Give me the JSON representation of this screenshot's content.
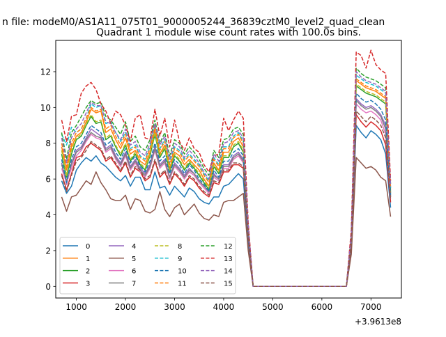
{
  "figure": {
    "suptitle": "n file: modeM0/AS1A11_075T01_9000005244_36839cztM0_level2_quad_clean",
    "title": "Quadrant 1 module wise count rates with 100.0s bins."
  },
  "chart_data": {
    "type": "line",
    "title": "Quadrant 1 module wise count rates with 100.0s bins.",
    "xlabel": "",
    "ylabel": "",
    "x_offset_label": "+3.9613e8",
    "xlim": [
      580,
      7620
    ],
    "ylim": [
      -0.65,
      13.75
    ],
    "xticks": [
      1000,
      2000,
      3000,
      4000,
      5000,
      6000,
      7000
    ],
    "yticks": [
      0,
      2,
      4,
      6,
      8,
      10,
      12
    ],
    "grid": false,
    "legend": {
      "location": "lower-left",
      "columns": 4
    },
    "x": [
      700,
      800,
      900,
      1000,
      1100,
      1200,
      1300,
      1400,
      1500,
      1600,
      1700,
      1800,
      1900,
      2000,
      2100,
      2200,
      2300,
      2400,
      2500,
      2600,
      2700,
      2800,
      2900,
      3000,
      3100,
      3200,
      3300,
      3400,
      3500,
      3600,
      3700,
      3800,
      3900,
      4000,
      4100,
      4200,
      4300,
      4400,
      4500,
      4600,
      4700,
      4800,
      4900,
      5000,
      5100,
      5200,
      5300,
      5400,
      5500,
      5600,
      5700,
      5800,
      5900,
      6000,
      6100,
      6200,
      6300,
      6400,
      6500,
      6600,
      6700,
      6800,
      6900,
      7000,
      7100,
      7200,
      7300,
      7400
    ],
    "series": [
      {
        "name": "0",
        "color": "#1f77b4",
        "dash": false,
        "values": [
          5.9,
          5.2,
          5.6,
          6.5,
          6.9,
          7.2,
          7.0,
          7.3,
          6.9,
          6.7,
          6.4,
          6.1,
          5.9,
          6.2,
          5.6,
          6.1,
          6.1,
          5.4,
          5.4,
          6.4,
          5.5,
          5.6,
          5.1,
          5.6,
          5.3,
          5.0,
          5.5,
          5.3,
          4.9,
          4.7,
          4.6,
          5.0,
          5.0,
          5.6,
          5.7,
          6.0,
          6.3,
          6.0,
          2.5,
          0,
          0,
          0,
          0,
          0,
          0,
          0,
          0,
          0,
          0,
          0,
          0,
          0,
          0,
          0,
          0,
          0,
          0,
          0,
          0,
          2.2,
          9.0,
          8.6,
          8.3,
          8.7,
          8.5,
          8.2,
          7.4,
          4.4
        ]
      },
      {
        "name": "1",
        "color": "#ff7f0e",
        "dash": false,
        "values": [
          7.8,
          6.5,
          7.8,
          8.4,
          8.6,
          9.2,
          9.9,
          9.7,
          9.8,
          8.6,
          8.8,
          8.2,
          7.7,
          8.3,
          7.4,
          7.6,
          7.0,
          6.8,
          7.5,
          8.7,
          7.4,
          7.9,
          6.6,
          7.5,
          7.3,
          6.8,
          7.1,
          6.8,
          6.5,
          6.0,
          5.6,
          6.9,
          6.5,
          7.5,
          7.5,
          8.1,
          8.3,
          7.8,
          3.2,
          0,
          0,
          0,
          0,
          0,
          0,
          0,
          0,
          0,
          0,
          0,
          0,
          0,
          0,
          0,
          0,
          0,
          0,
          0,
          0,
          2.8,
          11.5,
          11.3,
          11.1,
          11.0,
          10.9,
          10.7,
          10.5,
          5.4
        ]
      },
      {
        "name": "2",
        "color": "#2ca02c",
        "dash": false,
        "values": [
          7.4,
          6.1,
          7.4,
          8.2,
          8.4,
          9.0,
          9.5,
          9.1,
          9.2,
          8.2,
          8.4,
          7.8,
          7.3,
          7.9,
          7.0,
          7.4,
          6.8,
          6.5,
          7.3,
          8.5,
          7.2,
          7.7,
          6.4,
          7.3,
          7.0,
          6.5,
          6.9,
          6.6,
          6.2,
          5.8,
          5.4,
          6.7,
          6.3,
          7.2,
          7.2,
          7.8,
          8.0,
          7.5,
          3.1,
          0,
          0,
          0,
          0,
          0,
          0,
          0,
          0,
          0,
          0,
          0,
          0,
          0,
          0,
          0,
          0,
          0,
          0,
          0,
          0,
          2.7,
          11.2,
          11.0,
          10.8,
          10.7,
          10.6,
          10.4,
          10.2,
          5.2
        ]
      },
      {
        "name": "3",
        "color": "#d62728",
        "dash": false,
        "values": [
          6.3,
          5.4,
          6.3,
          7.2,
          7.3,
          7.8,
          8.0,
          7.8,
          7.6,
          7.0,
          7.2,
          6.8,
          6.4,
          6.9,
          6.1,
          6.6,
          6.4,
          5.9,
          6.1,
          7.0,
          6.1,
          6.4,
          5.7,
          6.3,
          6.0,
          5.6,
          6.1,
          5.9,
          5.5,
          5.2,
          5.0,
          5.8,
          5.7,
          6.4,
          6.4,
          6.8,
          6.8,
          6.6,
          2.8,
          0,
          0,
          0,
          0,
          0,
          0,
          0,
          0,
          0,
          0,
          0,
          0,
          0,
          0,
          0,
          0,
          0,
          0,
          0,
          0,
          2.4,
          9.6,
          9.2,
          8.9,
          9.2,
          9.0,
          8.7,
          7.9,
          4.7
        ]
      },
      {
        "name": "4",
        "color": "#9467bd",
        "dash": false,
        "values": [
          6.9,
          5.7,
          6.9,
          7.6,
          7.8,
          8.3,
          8.8,
          8.6,
          8.4,
          7.7,
          7.9,
          7.3,
          6.9,
          7.5,
          6.7,
          7.1,
          6.6,
          6.3,
          6.8,
          7.8,
          6.8,
          7.1,
          6.1,
          6.9,
          6.6,
          6.2,
          6.6,
          6.3,
          5.9,
          5.6,
          5.3,
          6.3,
          6.0,
          6.8,
          6.8,
          7.3,
          7.5,
          7.1,
          2.9,
          0,
          0,
          0,
          0,
          0,
          0,
          0,
          0,
          0,
          0,
          0,
          0,
          0,
          0,
          0,
          0,
          0,
          0,
          0,
          0,
          2.6,
          10.5,
          10.2,
          10.0,
          10.1,
          9.9,
          9.6,
          9.0,
          5.0
        ]
      },
      {
        "name": "5",
        "color": "#8c564b",
        "dash": false,
        "values": [
          5.0,
          4.2,
          5.0,
          5.1,
          5.5,
          5.9,
          5.7,
          6.4,
          5.8,
          5.4,
          4.9,
          4.8,
          4.8,
          5.1,
          4.3,
          4.9,
          4.8,
          4.2,
          4.1,
          4.3,
          5.3,
          4.3,
          3.9,
          4.4,
          4.6,
          4.0,
          4.3,
          4.6,
          4.1,
          3.8,
          3.7,
          4.0,
          3.9,
          4.7,
          4.8,
          4.8,
          5.0,
          5.2,
          2.0,
          0,
          0,
          0,
          0,
          0,
          0,
          0,
          0,
          0,
          0,
          0,
          0,
          0,
          0,
          0,
          0,
          0,
          0,
          0,
          0,
          1.8,
          7.2,
          6.9,
          6.6,
          6.7,
          6.5,
          6.1,
          5.9,
          3.9
        ]
      },
      {
        "name": "6",
        "color": "#e377c2",
        "dash": false,
        "values": [
          6.6,
          5.8,
          6.6,
          7.3,
          7.6,
          8.1,
          8.5,
          8.3,
          8.2,
          7.5,
          7.7,
          7.1,
          6.7,
          7.3,
          6.5,
          6.9,
          6.4,
          6.1,
          6.6,
          7.6,
          6.6,
          6.9,
          6.0,
          6.7,
          6.4,
          6.0,
          6.4,
          6.2,
          5.8,
          5.5,
          5.2,
          6.1,
          5.9,
          6.6,
          6.6,
          7.1,
          7.3,
          6.9,
          2.9,
          0,
          0,
          0,
          0,
          0,
          0,
          0,
          0,
          0,
          0,
          0,
          0,
          0,
          0,
          0,
          0,
          0,
          0,
          0,
          0,
          2.5,
          10.2,
          9.9,
          9.7,
          9.8,
          9.6,
          9.3,
          8.5,
          4.9
        ]
      },
      {
        "name": "7",
        "color": "#7f7f7f",
        "dash": false,
        "values": [
          6.8,
          5.9,
          6.8,
          7.5,
          7.7,
          8.2,
          8.6,
          8.4,
          8.3,
          7.6,
          7.8,
          7.2,
          6.8,
          7.4,
          6.6,
          7.0,
          6.5,
          6.2,
          6.7,
          7.7,
          6.7,
          7.0,
          6.1,
          6.8,
          6.5,
          6.1,
          6.5,
          6.3,
          5.9,
          5.6,
          5.3,
          6.2,
          6.0,
          6.7,
          6.7,
          7.2,
          7.4,
          7.0,
          2.9,
          0,
          0,
          0,
          0,
          0,
          0,
          0,
          0,
          0,
          0,
          0,
          0,
          0,
          0,
          0,
          0,
          0,
          0,
          0,
          0,
          2.6,
          10.4,
          10.1,
          9.9,
          10.0,
          9.8,
          9.5,
          8.8,
          5.0
        ]
      },
      {
        "name": "8",
        "color": "#bcbd22",
        "dash": true,
        "values": [
          7.6,
          6.2,
          7.6,
          8.3,
          8.5,
          9.1,
          9.6,
          9.2,
          9.3,
          8.3,
          8.5,
          7.9,
          7.4,
          8.0,
          7.1,
          7.5,
          6.9,
          6.6,
          7.4,
          8.6,
          7.3,
          7.8,
          6.5,
          7.4,
          7.1,
          6.6,
          7.0,
          6.7,
          6.3,
          5.9,
          5.5,
          6.8,
          6.4,
          7.3,
          7.3,
          7.9,
          8.1,
          7.6,
          3.1,
          0,
          0,
          0,
          0,
          0,
          0,
          0,
          0,
          0,
          0,
          0,
          0,
          0,
          0,
          0,
          0,
          0,
          0,
          0,
          0,
          2.7,
          11.3,
          11.1,
          10.9,
          10.8,
          10.7,
          10.5,
          10.3,
          5.3
        ]
      },
      {
        "name": "9",
        "color": "#17becf",
        "dash": true,
        "values": [
          8.5,
          7.9,
          8.9,
          8.6,
          8.8,
          9.4,
          10.2,
          10.0,
          10.1,
          9.1,
          9.2,
          8.6,
          8.1,
          8.6,
          7.7,
          7.9,
          7.3,
          7.1,
          7.8,
          9.0,
          7.7,
          8.2,
          6.9,
          7.8,
          7.6,
          7.1,
          7.4,
          7.1,
          6.8,
          6.3,
          5.9,
          7.2,
          6.8,
          7.8,
          7.8,
          8.4,
          8.6,
          8.1,
          3.3,
          0,
          0,
          0,
          0,
          0,
          0,
          0,
          0,
          0,
          0,
          0,
          0,
          0,
          0,
          0,
          0,
          0,
          0,
          0,
          0,
          2.9,
          11.8,
          11.6,
          11.4,
          11.3,
          11.2,
          11.0,
          10.8,
          5.5
        ]
      },
      {
        "name": "10",
        "color": "#1f77b4",
        "dash": true,
        "values": [
          7.1,
          5.8,
          7.1,
          7.8,
          8.0,
          8.5,
          9.0,
          8.8,
          8.6,
          7.9,
          8.1,
          7.5,
          7.1,
          7.7,
          6.9,
          7.3,
          6.7,
          6.4,
          7.0,
          8.0,
          7.0,
          7.3,
          6.3,
          7.1,
          6.8,
          6.3,
          6.8,
          6.5,
          6.0,
          5.7,
          5.3,
          6.5,
          6.1,
          7.0,
          7.0,
          7.5,
          7.7,
          7.3,
          3.0,
          0,
          0,
          0,
          0,
          0,
          0,
          0,
          0,
          0,
          0,
          0,
          0,
          0,
          0,
          0,
          0,
          0,
          0,
          0,
          0,
          2.6,
          10.8,
          10.5,
          10.3,
          10.4,
          10.2,
          9.9,
          9.3,
          5.1
        ]
      },
      {
        "name": "11",
        "color": "#ff7f0e",
        "dash": true,
        "values": [
          8.0,
          6.7,
          8.0,
          8.6,
          8.8,
          9.4,
          10.0,
          9.8,
          9.9,
          8.8,
          9.0,
          8.4,
          7.9,
          8.5,
          7.6,
          7.8,
          7.2,
          7.0,
          7.7,
          8.9,
          7.6,
          8.1,
          6.8,
          7.7,
          7.5,
          7.0,
          7.3,
          7.0,
          6.7,
          6.2,
          5.8,
          7.1,
          6.7,
          7.7,
          7.7,
          8.3,
          8.5,
          8.0,
          3.3,
          0,
          0,
          0,
          0,
          0,
          0,
          0,
          0,
          0,
          0,
          0,
          0,
          0,
          0,
          0,
          0,
          0,
          0,
          0,
          0,
          2.8,
          11.6,
          11.4,
          11.2,
          11.1,
          11.0,
          10.8,
          10.6,
          5.5
        ]
      },
      {
        "name": "12",
        "color": "#2ca02c",
        "dash": true,
        "values": [
          8.6,
          7.1,
          8.6,
          9.0,
          9.5,
          10.0,
          10.4,
          10.2,
          10.3,
          9.5,
          9.3,
          8.9,
          8.5,
          9.2,
          8.1,
          8.4,
          7.8,
          7.6,
          8.2,
          9.3,
          8.0,
          8.6,
          7.3,
          8.2,
          8.0,
          7.4,
          7.8,
          7.5,
          7.1,
          6.6,
          6.2,
          7.6,
          7.2,
          8.2,
          8.3,
          8.8,
          8.9,
          8.5,
          3.4,
          0,
          0,
          0,
          0,
          0,
          0,
          0,
          0,
          0,
          0,
          0,
          0,
          0,
          0,
          0,
          0,
          0,
          0,
          0,
          0,
          3.0,
          12.2,
          11.9,
          11.7,
          11.6,
          11.5,
          11.3,
          11.1,
          5.7
        ]
      },
      {
        "name": "13",
        "color": "#d62728",
        "dash": true,
        "values": [
          9.3,
          8.1,
          9.5,
          9.6,
          10.8,
          11.2,
          11.4,
          11.0,
          10.2,
          9.8,
          9.1,
          9.8,
          9.6,
          9.0,
          8.1,
          9.4,
          9.6,
          8.3,
          8.2,
          9.9,
          8.4,
          9.4,
          7.8,
          9.3,
          8.1,
          7.6,
          8.3,
          7.7,
          7.5,
          6.8,
          6.4,
          7.3,
          7.4,
          9.4,
          8.7,
          9.3,
          9.8,
          9.4,
          3.6,
          0,
          0,
          0,
          0,
          0,
          0,
          0,
          0,
          0,
          0,
          0,
          0,
          0,
          0,
          0,
          0,
          0,
          0,
          0,
          0,
          3.2,
          13.1,
          12.9,
          12.2,
          13.2,
          12.4,
          12.1,
          11.9,
          5.9
        ]
      },
      {
        "name": "14",
        "color": "#9467bd",
        "dash": true,
        "values": [
          8.3,
          6.9,
          8.3,
          8.8,
          9.1,
          9.7,
          10.3,
          10.1,
          10.1,
          9.2,
          9.1,
          8.6,
          8.2,
          8.8,
          7.9,
          8.1,
          7.5,
          7.3,
          8.0,
          9.1,
          7.9,
          8.4,
          7.1,
          8.0,
          7.8,
          7.2,
          7.6,
          7.3,
          6.9,
          6.4,
          6.0,
          7.4,
          7.0,
          8.0,
          8.1,
          8.6,
          8.7,
          8.3,
          3.4,
          0,
          0,
          0,
          0,
          0,
          0,
          0,
          0,
          0,
          0,
          0,
          0,
          0,
          0,
          0,
          0,
          0,
          0,
          0,
          0,
          2.9,
          12.0,
          11.7,
          11.5,
          11.4,
          11.3,
          11.1,
          10.9,
          5.6
        ]
      },
      {
        "name": "15",
        "color": "#8c564b",
        "dash": true,
        "values": [
          6.2,
          5.3,
          6.2,
          7.0,
          7.2,
          7.6,
          8.1,
          7.9,
          7.7,
          7.1,
          7.3,
          6.9,
          6.5,
          7.0,
          6.2,
          6.7,
          6.5,
          6.0,
          6.2,
          7.1,
          6.2,
          6.5,
          5.8,
          6.4,
          6.1,
          5.7,
          6.2,
          6.0,
          5.6,
          5.3,
          5.1,
          5.9,
          5.8,
          6.5,
          6.5,
          6.9,
          6.9,
          6.7,
          2.8,
          0,
          0,
          0,
          0,
          0,
          0,
          0,
          0,
          0,
          0,
          0,
          0,
          0,
          0,
          0,
          0,
          0,
          0,
          0,
          0,
          2.4,
          9.8,
          9.5,
          9.2,
          9.5,
          9.3,
          9.0,
          8.3,
          4.8
        ]
      }
    ]
  }
}
